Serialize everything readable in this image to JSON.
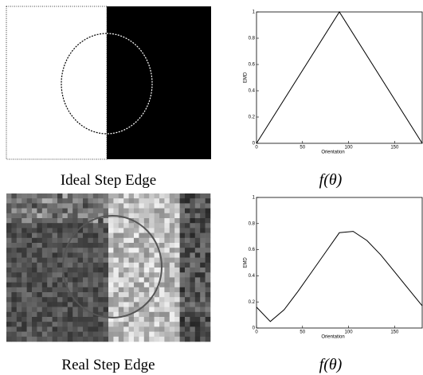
{
  "images": [
    {
      "caption": "Ideal Step Edge"
    },
    {
      "caption": "Real Step Edge"
    }
  ],
  "chart_data": [
    {
      "type": "line",
      "caption": "f(θ)",
      "xlabel": "Orientation",
      "ylabel": "EMD",
      "color": "#000000",
      "x": [
        0,
        90,
        180
      ],
      "values": [
        0,
        1,
        0
      ],
      "xlim": [
        0,
        180
      ],
      "ylim": [
        0,
        1
      ],
      "xticks": [
        0,
        50,
        100,
        150
      ],
      "yticks": [
        0,
        0.2,
        0.4,
        0.6,
        0.8,
        1
      ]
    },
    {
      "type": "line",
      "caption": "f(θ)",
      "xlabel": "Orientation",
      "ylabel": "EMD",
      "color": "#000000",
      "x": [
        0,
        15,
        30,
        45,
        60,
        75,
        90,
        105,
        120,
        135,
        150,
        165,
        180
      ],
      "values": [
        0.16,
        0.05,
        0.14,
        0.28,
        0.43,
        0.58,
        0.73,
        0.74,
        0.67,
        0.56,
        0.43,
        0.3,
        0.17
      ],
      "xlim": [
        0,
        180
      ],
      "ylim": [
        0,
        1
      ],
      "xticks": [
        0,
        50,
        100,
        150
      ],
      "yticks": [
        0,
        0.2,
        0.4,
        0.6,
        0.8,
        1
      ]
    }
  ]
}
